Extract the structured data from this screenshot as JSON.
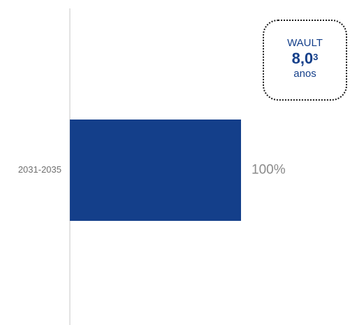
{
  "chart_data": {
    "type": "bar",
    "orientation": "horizontal",
    "categories": [
      "2031-2035"
    ],
    "values": [
      100
    ],
    "value_labels": [
      "100%"
    ],
    "xlim": [
      0,
      100
    ],
    "color": "#143f8a",
    "grid": false,
    "legend": "none"
  },
  "wault": {
    "label": "WAULT",
    "value": "8,0",
    "footnote": "3",
    "unit": "anos"
  }
}
